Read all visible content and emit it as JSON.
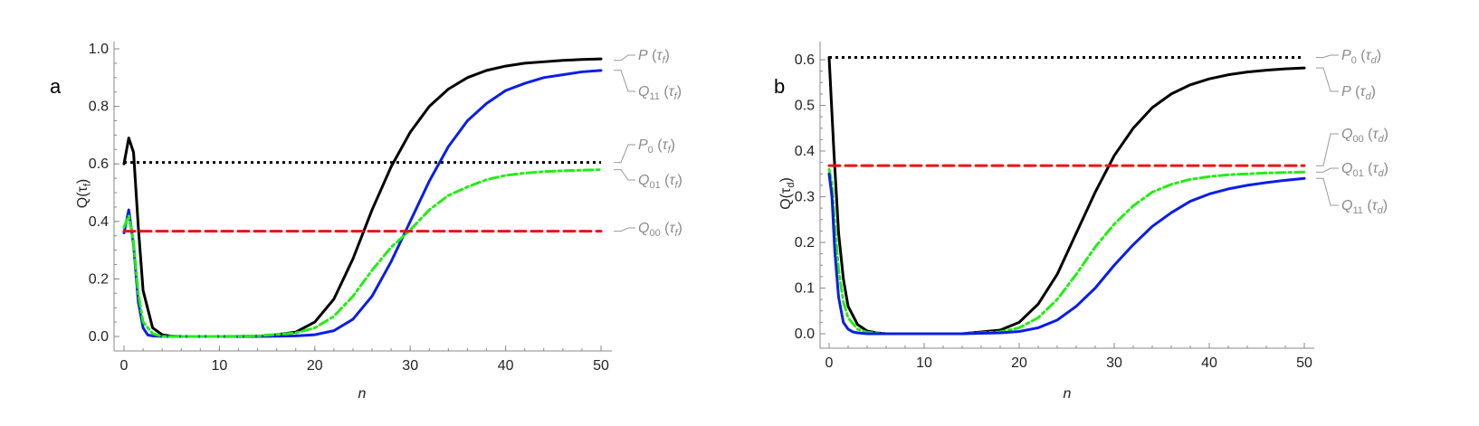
{
  "chart_data": [
    {
      "type": "line",
      "panel_label": "a",
      "xlabel": "n",
      "ylabel": "Q(τ_f)",
      "xlim": [
        0,
        50
      ],
      "ylim": [
        0,
        1.0
      ],
      "xticks": [
        0,
        10,
        20,
        30,
        40,
        50
      ],
      "yticks": [
        0.0,
        0.2,
        0.4,
        0.6,
        0.8,
        1.0
      ],
      "x_minor_step": 2,
      "y_minor_step": 0.05,
      "series": [
        {
          "name": "P(τ_f)",
          "label_main": "P",
          "label_sub": "",
          "label_arg": "τ",
          "label_argsub": "f",
          "color": "#000000",
          "style": "solid",
          "label_y": 0.96,
          "x": [
            0,
            0.5,
            1,
            1.5,
            2,
            3,
            4,
            5,
            6,
            8,
            10,
            12,
            15,
            18,
            20,
            22,
            24,
            26,
            28,
            30,
            32,
            34,
            36,
            38,
            40,
            42,
            44,
            46,
            48,
            50
          ],
          "values": [
            0.6,
            0.69,
            0.64,
            0.38,
            0.16,
            0.03,
            0.006,
            0.001,
            0.0,
            0.0,
            0.0,
            0.0,
            0.002,
            0.015,
            0.05,
            0.13,
            0.27,
            0.44,
            0.59,
            0.71,
            0.8,
            0.86,
            0.9,
            0.925,
            0.94,
            0.95,
            0.955,
            0.96,
            0.963,
            0.965
          ]
        },
        {
          "name": "Q11(τ_f)",
          "label_main": "Q",
          "label_sub": "11",
          "label_arg": "τ",
          "label_argsub": "f",
          "color": "#0a1ee6",
          "style": "solid",
          "label_y": 0.88,
          "x": [
            0,
            0.5,
            1,
            1.5,
            2,
            2.5,
            3,
            4,
            6,
            8,
            10,
            14,
            18,
            20,
            22,
            24,
            26,
            28,
            30,
            32,
            34,
            36,
            38,
            40,
            42,
            44,
            46,
            48,
            50
          ],
          "values": [
            0.36,
            0.44,
            0.32,
            0.12,
            0.03,
            0.005,
            0.002,
            0.0,
            0.0,
            0.0,
            0.0,
            0.0,
            0.002,
            0.006,
            0.02,
            0.06,
            0.14,
            0.26,
            0.4,
            0.54,
            0.66,
            0.75,
            0.81,
            0.855,
            0.88,
            0.9,
            0.91,
            0.92,
            0.925
          ]
        },
        {
          "name": "P0(τ_f)",
          "label_main": "P",
          "label_sub": "0",
          "label_arg": "τ",
          "label_argsub": "f",
          "color": "#000000",
          "style": "dotted",
          "label_y": 0.69,
          "x": [
            0,
            50
          ],
          "values": [
            0.605,
            0.605
          ]
        },
        {
          "name": "Q01(τ_f)",
          "label_main": "Q",
          "label_sub": "01",
          "label_arg": "τ",
          "label_argsub": "f",
          "color": "#22ee11",
          "style": "dashdot",
          "label_y": 0.5,
          "x": [
            0,
            0.5,
            1,
            1.5,
            2,
            3,
            4,
            6,
            8,
            10,
            14,
            18,
            20,
            22,
            24,
            26,
            28,
            30,
            32,
            34,
            36,
            38,
            40,
            42,
            44,
            46,
            48,
            50
          ],
          "values": [
            0.38,
            0.42,
            0.33,
            0.15,
            0.05,
            0.01,
            0.0,
            0.0,
            0.0,
            0.0,
            0.002,
            0.012,
            0.03,
            0.07,
            0.14,
            0.23,
            0.31,
            0.37,
            0.44,
            0.49,
            0.52,
            0.545,
            0.56,
            0.568,
            0.573,
            0.576,
            0.578,
            0.58
          ]
        },
        {
          "name": "Q00(τ_f)",
          "label_main": "Q",
          "label_sub": "00",
          "label_arg": "τ",
          "label_argsub": "f",
          "color": "#ee1111",
          "style": "dashed",
          "label_y": 0.31,
          "x": [
            0,
            50
          ],
          "values": [
            0.366,
            0.366
          ]
        }
      ],
      "label_anchor_values": [
        0.96,
        0.925,
        0.605,
        0.58,
        0.366
      ]
    },
    {
      "type": "line",
      "panel_label": "b",
      "xlabel": "n",
      "ylabel": "Q(τ_d)",
      "xlim": [
        0,
        50
      ],
      "ylim": [
        0,
        0.6
      ],
      "xticks": [
        0,
        10,
        20,
        30,
        40,
        50
      ],
      "yticks": [
        0.0,
        0.1,
        0.2,
        0.3,
        0.4,
        0.5,
        0.6
      ],
      "x_minor_step": 2,
      "y_minor_step": 0.025,
      "series": [
        {
          "name": "P0(τ_d)",
          "label_main": "P",
          "label_sub": "0",
          "label_arg": "τ",
          "label_argsub": "d",
          "color": "#000000",
          "style": "dotted",
          "label_y": 0.605,
          "x": [
            0,
            50
          ],
          "values": [
            0.605,
            0.605
          ]
        },
        {
          "name": "P(τ_d)",
          "label_main": "P",
          "label_sub": "",
          "label_arg": "τ",
          "label_argsub": "d",
          "color": "#000000",
          "style": "solid",
          "label_y": 0.525,
          "x": [
            0,
            0.5,
            1,
            1.5,
            2,
            3,
            4,
            5,
            6,
            8,
            10,
            14,
            18,
            20,
            22,
            24,
            26,
            28,
            30,
            32,
            34,
            36,
            38,
            40,
            42,
            44,
            46,
            48,
            50
          ],
          "values": [
            0.605,
            0.4,
            0.22,
            0.12,
            0.06,
            0.02,
            0.006,
            0.002,
            0.0,
            0.0,
            0.0,
            0.0,
            0.008,
            0.025,
            0.065,
            0.13,
            0.22,
            0.31,
            0.39,
            0.45,
            0.495,
            0.525,
            0.545,
            0.558,
            0.567,
            0.573,
            0.577,
            0.58,
            0.582
          ]
        },
        {
          "name": "Q00(τ_d)",
          "label_main": "Q",
          "label_sub": "00",
          "label_arg": "τ",
          "label_argsub": "d",
          "color": "#ee1111",
          "style": "dashed",
          "label_y": 0.427,
          "x": [
            0,
            50
          ],
          "values": [
            0.368,
            0.368
          ]
        },
        {
          "name": "Q01(τ_d)",
          "label_main": "Q",
          "label_sub": "01",
          "label_arg": "τ",
          "label_argsub": "d",
          "color": "#22ee11",
          "style": "dashdot",
          "label_y": 0.353,
          "x": [
            0,
            0.3,
            0.6,
            1,
            1.5,
            2,
            3,
            4,
            6,
            8,
            10,
            14,
            18,
            20,
            22,
            24,
            26,
            28,
            30,
            32,
            34,
            36,
            38,
            40,
            42,
            44,
            46,
            48,
            50
          ],
          "values": [
            0.36,
            0.33,
            0.24,
            0.14,
            0.07,
            0.035,
            0.01,
            0.003,
            0.0,
            0.0,
            0.0,
            0.0,
            0.004,
            0.013,
            0.035,
            0.075,
            0.13,
            0.19,
            0.24,
            0.28,
            0.31,
            0.327,
            0.338,
            0.344,
            0.348,
            0.35,
            0.352,
            0.353,
            0.354
          ]
        },
        {
          "name": "Q11(τ_d)",
          "label_main": "Q",
          "label_sub": "11",
          "label_arg": "τ",
          "label_argsub": "d",
          "color": "#0a1ee6",
          "style": "solid",
          "label_y": 0.27,
          "x": [
            0,
            0.3,
            0.6,
            1,
            1.5,
            2,
            2.5,
            3,
            4,
            6,
            8,
            10,
            14,
            18,
            20,
            22,
            24,
            26,
            28,
            30,
            32,
            34,
            36,
            38,
            40,
            42,
            44,
            46,
            48,
            50
          ],
          "values": [
            0.35,
            0.3,
            0.18,
            0.08,
            0.025,
            0.01,
            0.004,
            0.002,
            0.0,
            0.0,
            0.0,
            0.0,
            0.0,
            0.002,
            0.005,
            0.013,
            0.03,
            0.06,
            0.1,
            0.15,
            0.195,
            0.235,
            0.265,
            0.29,
            0.306,
            0.317,
            0.325,
            0.331,
            0.336,
            0.34
          ]
        }
      ],
      "label_anchor_values": [
        0.605,
        0.582,
        0.368,
        0.354,
        0.34
      ]
    }
  ]
}
